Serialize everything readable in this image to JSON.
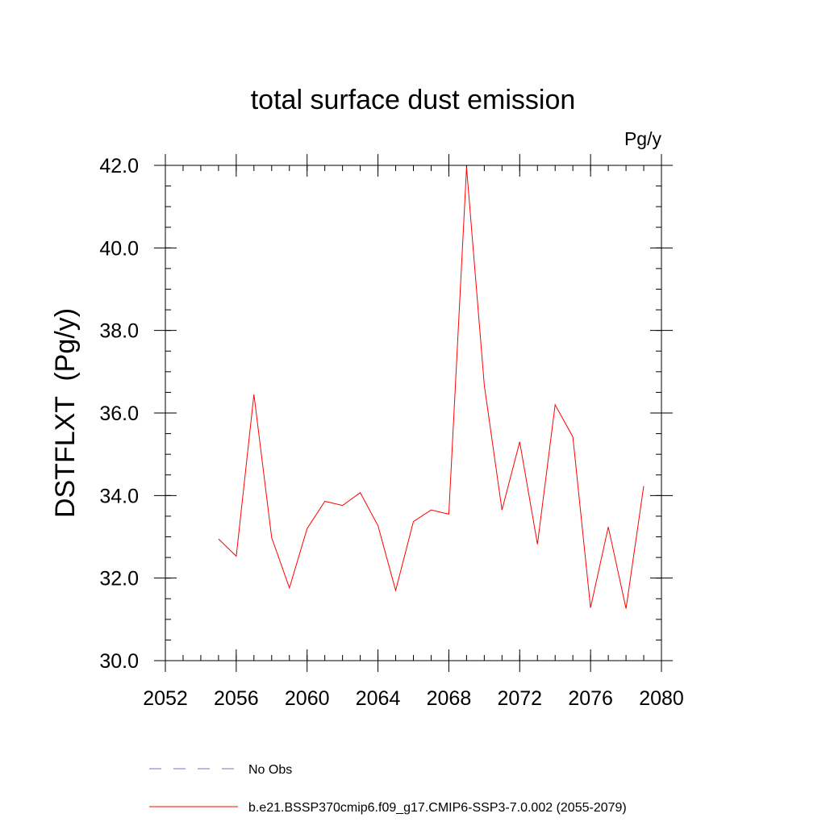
{
  "chart_data": {
    "type": "line",
    "title": "total surface dust emission",
    "units_label": "Pg/y",
    "ylabel": "DSTFLXT  (Pg/y)",
    "xlabel": "",
    "xlim": [
      2052,
      2080
    ],
    "ylim": [
      30.0,
      42.0
    ],
    "x_ticks": [
      2052,
      2056,
      2060,
      2064,
      2068,
      2072,
      2076,
      2080
    ],
    "y_ticks": [
      "30.0",
      "32.0",
      "34.0",
      "36.0",
      "38.0",
      "40.0",
      "42.0"
    ],
    "x_minor_step": 1,
    "y_minor_step": 0.5,
    "grid": false,
    "legend_position": "bottom",
    "series": [
      {
        "name": "b.e21.BSSP370cmip6.f09_g17.CMIP6-SSP3-7.0.002 (2055-2079)",
        "color": "#ff0000",
        "dash": "solid",
        "x": [
          2055,
          2056,
          2057,
          2058,
          2059,
          2060,
          2061,
          2062,
          2063,
          2064,
          2065,
          2066,
          2067,
          2068,
          2069,
          2070,
          2071,
          2072,
          2073,
          2074,
          2075,
          2076,
          2077,
          2078,
          2079
        ],
        "values": [
          32.95,
          32.53,
          36.45,
          32.98,
          31.76,
          33.2,
          33.86,
          33.76,
          34.07,
          33.27,
          31.7,
          33.37,
          33.65,
          33.55,
          41.95,
          36.67,
          33.65,
          35.3,
          32.82,
          36.2,
          35.42,
          31.28,
          33.24,
          31.26,
          34.23
        ]
      }
    ],
    "legend": [
      {
        "label": "No Obs",
        "color": "#7070c8",
        "dash": "dashed"
      },
      {
        "label": "b.e21.BSSP370cmip6.f09_g17.CMIP6-SSP3-7.0.002 (2055-2079)",
        "color": "#ff0000",
        "dash": "solid"
      }
    ]
  }
}
